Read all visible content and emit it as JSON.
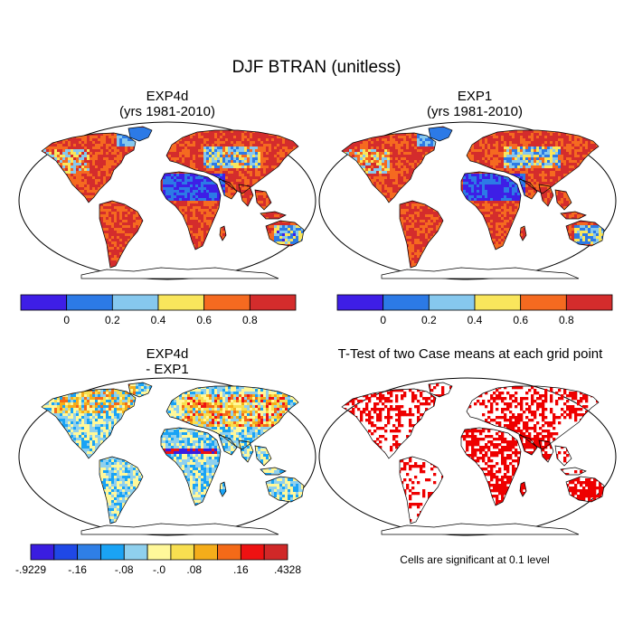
{
  "title": "DJF BTRAN (unitless)",
  "panels": [
    {
      "id": "p1",
      "title1": "EXP4d",
      "title2": "(yrs 1981-2010)"
    },
    {
      "id": "p2",
      "title1": "EXP1",
      "title2": "(yrs 1981-2010)"
    },
    {
      "id": "p3",
      "title1": "EXP4d",
      "title2": "- EXP1"
    },
    {
      "id": "p4",
      "title1": "T-Test of two Case means at each grid point",
      "title2": ""
    }
  ],
  "colorbar_abs": {
    "colors": [
      "#3e1ee6",
      "#2c7ae6",
      "#86c8ee",
      "#f9e65c",
      "#f56a20",
      "#d42c2c"
    ],
    "labels": [
      "0",
      "0.2",
      "0.4",
      "0.6",
      "0.8"
    ]
  },
  "colorbar_diff": {
    "colors": [
      "#3a1de0",
      "#1f48e6",
      "#2f7fe6",
      "#1aa3f5",
      "#8fd0ee",
      "#fff89a",
      "#f8df50",
      "#f5ad1a",
      "#f46a18",
      "#ee1212",
      "#d02828"
    ],
    "labels": [
      "-.9229",
      "-.16",
      "-.08",
      "-.0",
      ".08",
      ".16",
      ".4328"
    ]
  },
  "ttest_color": "#ee0000",
  "significance_note": "Cells are significant at 0.1 level"
}
